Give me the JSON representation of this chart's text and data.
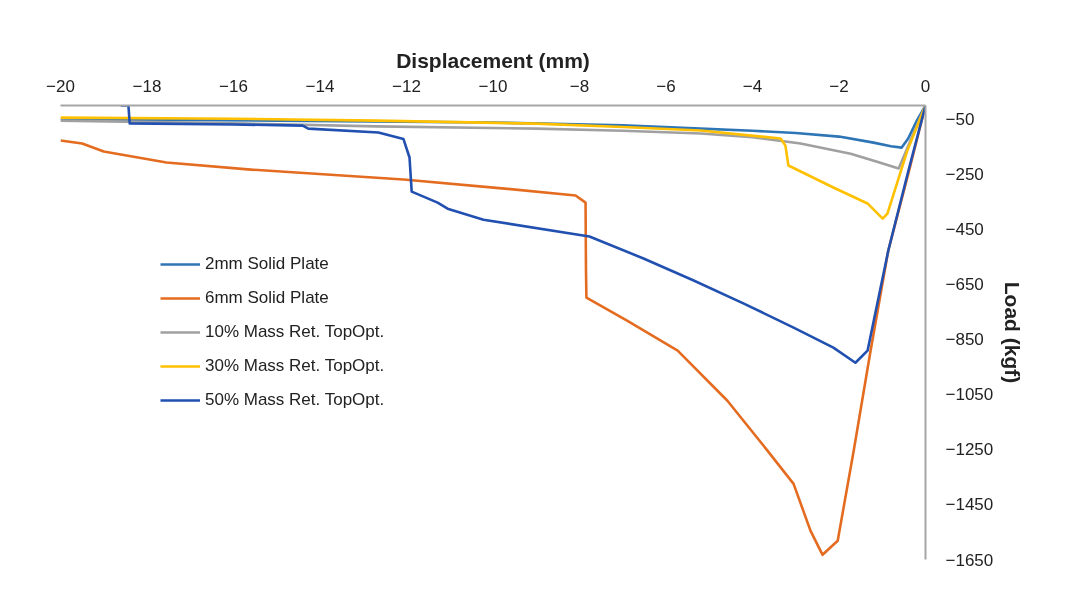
{
  "chart_data": {
    "type": "line",
    "xlabel": "Displacement (mm)",
    "ylabel": "Load (kgf)",
    "xlim": [
      -20,
      0
    ],
    "ylim": [
      -1650,
      0
    ],
    "xticks": [
      -20,
      -18,
      -16,
      -14,
      -12,
      -10,
      -8,
      -6,
      -4,
      -2,
      0
    ],
    "yticks": [
      -50,
      -250,
      -450,
      -650,
      -850,
      -1050,
      -1250,
      -1450,
      -1650
    ],
    "grid": false,
    "legend": "center left",
    "marker": "none",
    "line_style": "solid",
    "series": [
      {
        "name": "2mm Solid Plate",
        "color": "#2e75b6",
        "x": [
          -20,
          -15,
          -10,
          -7,
          -5.2,
          -4,
          -3,
          -2,
          -1.2,
          -0.8,
          -0.55,
          -0.4,
          -0.2,
          0
        ],
        "values": [
          -50,
          -55,
          -62,
          -72,
          -84,
          -92,
          -100,
          -113,
          -135,
          -148,
          -153,
          -120,
          -55,
          0
        ]
      },
      {
        "name": "6mm Solid Plate",
        "color": "#e46c21",
        "x": [
          -20,
          -19.5,
          -19.0,
          -17.55,
          -15.6,
          -12.07,
          -9.73,
          -8.09,
          -7.86,
          -7.85,
          -7.84,
          -6.9,
          -5.73,
          -4.58,
          -3.65,
          -3.05,
          -2.66,
          -2.38,
          -2.03,
          -1.66,
          -1.27,
          -0.86,
          -0.4,
          0
        ],
        "values": [
          -127,
          -138,
          -167,
          -207,
          -233,
          -269,
          -302,
          -327,
          -353,
          -600,
          -698,
          -782,
          -891,
          -1073,
          -1255,
          -1375,
          -1545,
          -1633,
          -1582,
          -1255,
          -891,
          -527,
          -250,
          0
        ]
      },
      {
        "name": "10% Mass Ret. TopOpt.",
        "color": "#a0a0a0",
        "x": [
          -20,
          -16,
          -12.7,
          -9,
          -7,
          -5.2,
          -4,
          -2.89,
          -1.73,
          -1.1,
          -0.62,
          -0.3,
          0
        ],
        "values": [
          -55,
          -65,
          -76,
          -84,
          -92,
          -102,
          -115,
          -138,
          -175,
          -205,
          -229,
          -110,
          0
        ]
      },
      {
        "name": "30% Mass Ret. TopOpt.",
        "color": "#ffc000",
        "x": [
          -20,
          -16,
          -12.7,
          -9,
          -7,
          -5.2,
          -3.35,
          -3.24,
          -3.17,
          -2.13,
          -1.34,
          -0.99,
          -0.88,
          -0.42,
          0
        ],
        "values": [
          -44,
          -48,
          -55,
          -66,
          -78,
          -91,
          -120,
          -145,
          -218,
          -298,
          -356,
          -411,
          -393,
          -164,
          0
        ]
      },
      {
        "name": "50% Mass Ret. TopOpt.",
        "color": "#2150b0",
        "x": [
          -18.61,
          -18.43,
          -18.4,
          -16,
          -14.4,
          -14.27,
          -12.65,
          -12.07,
          -11.93,
          -11.88,
          -11.28,
          -11.05,
          -10.22,
          -7.77,
          -6.52,
          -5.36,
          -4.2,
          -3.05,
          -2.13,
          -1.62,
          -1.34,
          -0.86,
          -0.4,
          0
        ],
        "values": [
          0,
          0,
          -65,
          -69,
          -73,
          -84,
          -98,
          -122,
          -189,
          -313,
          -353,
          -375,
          -415,
          -476,
          -556,
          -636,
          -720,
          -807,
          -880,
          -935,
          -891,
          -527,
          -240,
          0
        ]
      }
    ]
  }
}
